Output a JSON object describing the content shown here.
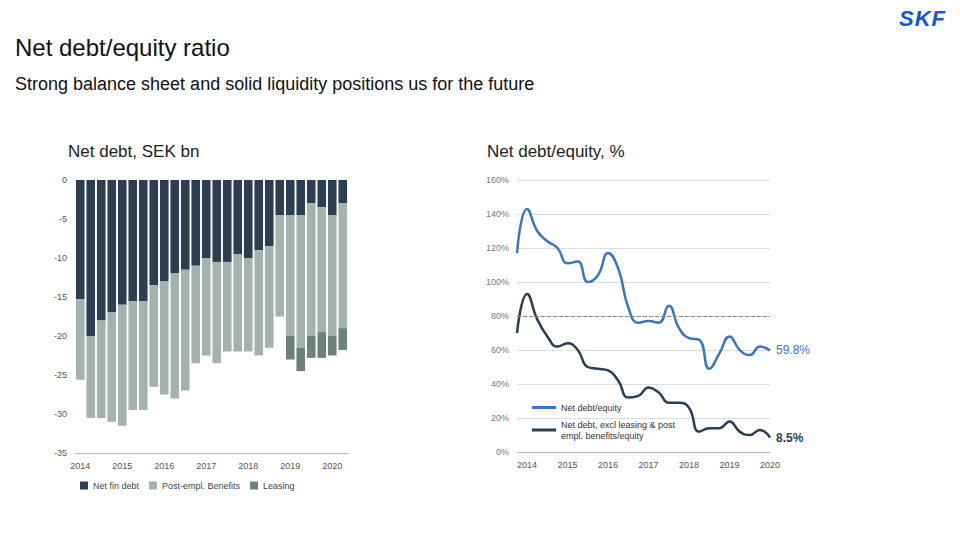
{
  "title": "Net debt/equity ratio",
  "subtitle": "Strong balance sheet and solid liquidity positions us for the future",
  "logo": "SKF",
  "chart_data": [
    {
      "type": "bar",
      "title": "Net debt, SEK bn",
      "stacked": true,
      "grid": false,
      "legend": "lower left",
      "categories": [
        "2014",
        null,
        null,
        null,
        "2015",
        null,
        null,
        null,
        "2016",
        null,
        null,
        null,
        "2017",
        null,
        null,
        null,
        "2018",
        null,
        null,
        null,
        "2019",
        null,
        null,
        null,
        "2020",
        null
      ],
      "ylim": [
        -35,
        0
      ],
      "yticks": [
        -35,
        -30,
        -25,
        -20,
        -15,
        -10,
        -5,
        0
      ],
      "series": [
        {
          "name": "Net fin debt",
          "color": "#2c3e50",
          "values": [
            -15.3,
            -20,
            -18,
            -17,
            -16,
            -15.5,
            -15.5,
            -13.5,
            -13,
            -12,
            -11.5,
            -11,
            -10,
            -10.5,
            -10.5,
            -9.5,
            -10,
            -9,
            -8.5,
            -4.5,
            -4.5,
            -4.5,
            -3,
            -3.5,
            -4.5,
            -3
          ]
        },
        {
          "name": "Post-empl. Benefits",
          "color": "#a3b2ac",
          "values": [
            -10.3,
            -10.5,
            -12.5,
            -14,
            -15.5,
            -14,
            -14,
            -13,
            -14.5,
            -16,
            -15.5,
            -12.5,
            -12.5,
            -13,
            -11.5,
            -12.5,
            -12,
            -13.5,
            -13,
            -13,
            -15.5,
            -17,
            -17,
            -16,
            -15.5,
            -16
          ]
        },
        {
          "name": "Leasing",
          "color": "#6e807a",
          "values": [
            null,
            null,
            null,
            null,
            null,
            null,
            null,
            null,
            null,
            null,
            null,
            null,
            null,
            null,
            null,
            null,
            null,
            null,
            null,
            null,
            -3,
            -3,
            -2.8,
            -3.3,
            -2.5,
            -2.8
          ]
        }
      ]
    },
    {
      "type": "line",
      "title": "Net debt/equity, %",
      "grid": true,
      "legend": "lower left",
      "categories": [
        null,
        "2014",
        null,
        null,
        null,
        "2015",
        null,
        null,
        null,
        "2016",
        null,
        null,
        null,
        "2017",
        null,
        null,
        null,
        "2018",
        null,
        null,
        null,
        "2019",
        null,
        null,
        null,
        "2020"
      ],
      "ylim": [
        0,
        160
      ],
      "yticks": [
        {
          "value": 0,
          "label": "0%"
        },
        {
          "value": 20,
          "label": "20%"
        },
        {
          "value": 40,
          "label": "40%"
        },
        {
          "value": 60,
          "label": "60%"
        },
        {
          "value": 80,
          "label": "80%"
        },
        {
          "value": 100,
          "label": "100%"
        },
        {
          "value": 120,
          "label": "120%"
        },
        {
          "value": 140,
          "label": "140%"
        },
        {
          "value": 160,
          "label": "160%"
        }
      ],
      "reference_lines": [
        {
          "value": 80,
          "line_style": "dashed"
        }
      ],
      "series": [
        {
          "name": "Net debt/equity",
          "color": "#3a75c4",
          "values": [
            117,
            143,
            130,
            124,
            120,
            111,
            112,
            100,
            104,
            117,
            108,
            85,
            76,
            77,
            76,
            86,
            73,
            67,
            66,
            49,
            58,
            68,
            60,
            57,
            62,
            59.8
          ],
          "value_labels": [
            null,
            null,
            null,
            null,
            null,
            null,
            null,
            null,
            null,
            null,
            null,
            null,
            null,
            null,
            null,
            null,
            null,
            null,
            null,
            null,
            null,
            null,
            null,
            null,
            null,
            "59.8%"
          ]
        },
        {
          "name": "Net debt, excl leasing & post empl. benefits/equity",
          "color": "#2c3e50",
          "values": [
            70,
            93,
            78,
            68,
            62,
            64,
            60,
            50,
            49,
            48,
            42,
            32,
            33,
            38,
            35,
            29,
            29,
            26,
            12,
            14,
            14,
            18,
            12,
            10,
            13,
            8.5
          ],
          "value_labels": [
            null,
            null,
            null,
            null,
            null,
            null,
            null,
            null,
            null,
            null,
            null,
            null,
            null,
            null,
            null,
            null,
            null,
            null,
            null,
            null,
            null,
            null,
            null,
            null,
            null,
            "8.5%"
          ]
        }
      ]
    }
  ]
}
